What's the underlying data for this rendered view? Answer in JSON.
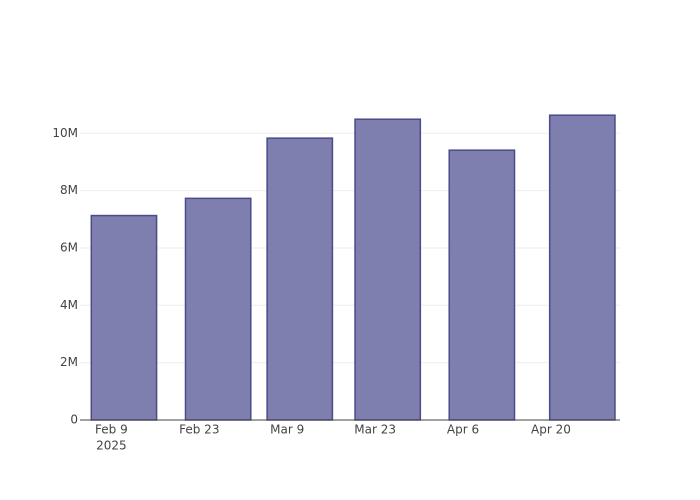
{
  "chart_data": {
    "type": "bar",
    "x": [
      "2025-02-11",
      "2025-02-26",
      "2025-03-11",
      "2025-03-25",
      "2025-04-09",
      "2025-04-25"
    ],
    "values": [
      7130000,
      7730000,
      9830000,
      10490000,
      9410000,
      10630000
    ],
    "color": "#7f7faf",
    "edge_color": "#4b4b8c",
    "xlim": [
      "2025-02-04",
      "2025-05-01"
    ],
    "xticks": [
      {
        "value": "2025-02-09",
        "label": "Feb 9"
      },
      {
        "value": "2025-02-23",
        "label": "Feb 23"
      },
      {
        "value": "2025-03-09",
        "label": "Mar 9"
      },
      {
        "value": "2025-03-23",
        "label": "Mar 23"
      },
      {
        "value": "2025-04-06",
        "label": "Apr 6"
      },
      {
        "value": "2025-04-20",
        "label": "Apr 20"
      }
    ],
    "x_year_label": "2025",
    "ylim": [
      0,
      11160000
    ],
    "yticks": [
      0,
      {
        "value": 2000000,
        "label": "2M"
      },
      {
        "value": 4000000,
        "label": "4M"
      },
      {
        "value": 6000000,
        "label": "6M"
      },
      {
        "value": 8000000,
        "label": "8M"
      },
      {
        "value": 10000000,
        "label": "10M"
      }
    ],
    "grid": true
  }
}
